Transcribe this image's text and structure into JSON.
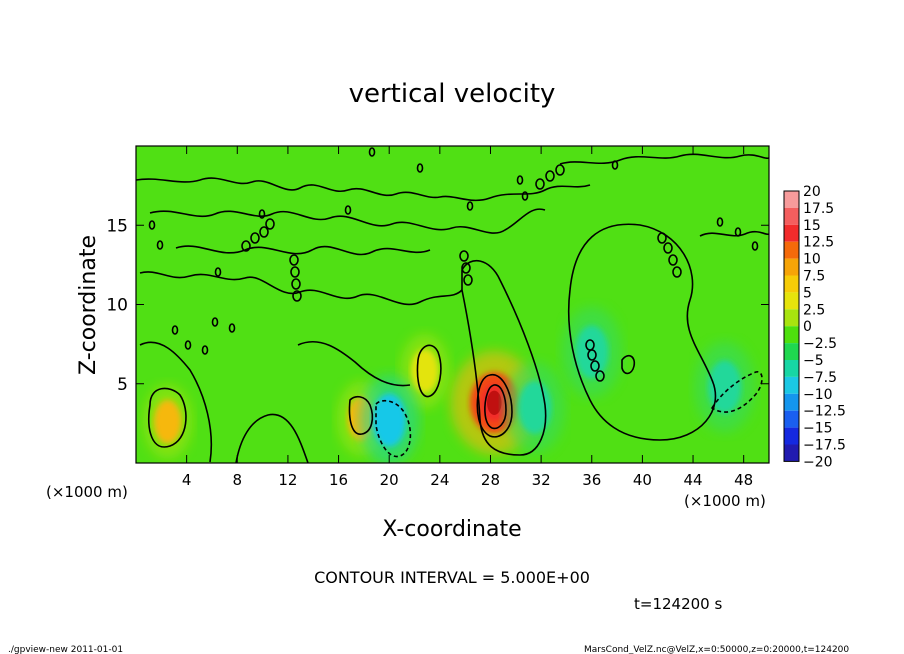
{
  "chart_data": {
    "type": "heatmap",
    "title": "vertical velocity",
    "xlabel": "X-coordinate",
    "ylabel": "Z-coordinate",
    "x_unit_label": "(×1000 m)",
    "x_unit_label_right": "(×1000 m)",
    "x_range": [
      0,
      50
    ],
    "y_range": [
      0,
      20
    ],
    "x_ticks": [
      4,
      8,
      12,
      16,
      20,
      24,
      28,
      32,
      36,
      40,
      44,
      48
    ],
    "y_ticks": [
      5,
      10,
      15
    ],
    "contour_interval_text": "CONTOUR INTERVAL = 5.000E+00",
    "time_text": "t=124200 s",
    "colorbar": {
      "levels": [
        "20",
        "17.5",
        "15",
        "12.5",
        "10",
        "7.5",
        "5",
        "2.5",
        "0",
        "−2.5",
        "−5",
        "−7.5",
        "−10",
        "−12.5",
        "−15",
        "−17.5",
        "−20"
      ],
      "colors": [
        "#f79b9b",
        "#f45e5e",
        "#f22b2b",
        "#f56a0a",
        "#f6a407",
        "#f6cc07",
        "#e6e40c",
        "#a8e40f",
        "#4ee00d",
        "#1fd84f",
        "#17d6a4",
        "#1bc8e4",
        "#1496ee",
        "#1a5ff0",
        "#1529e0",
        "#211bb0",
        "#6a1fb0"
      ]
    },
    "features": [
      {
        "type": "updraft_core",
        "x": 28.3,
        "z": 3.8,
        "value": 12.5
      },
      {
        "type": "updraft",
        "x": 2.5,
        "z": 2.6,
        "value": 6
      },
      {
        "type": "updraft",
        "x": 17.8,
        "z": 2.8,
        "value": 7
      },
      {
        "type": "updraft",
        "x": 22.8,
        "z": 5.8,
        "value": 5
      },
      {
        "type": "downdraft",
        "x": 20.0,
        "z": 2.7,
        "value": -6
      },
      {
        "type": "downdraft",
        "x": 46.5,
        "z": 4.8,
        "value": -3
      },
      {
        "type": "downdraft",
        "x": 31.5,
        "z": 3.5,
        "value": -2
      },
      {
        "type": "downdraft",
        "x": 36.0,
        "z": 7.0,
        "value": -2
      }
    ],
    "grid": false,
    "legend_position": "right"
  },
  "footer": {
    "left": "./gpview-new   2011-01-01",
    "right": "MarsCond_VelZ.nc@VelZ,x=0:50000,z=0:20000,t=124200"
  }
}
